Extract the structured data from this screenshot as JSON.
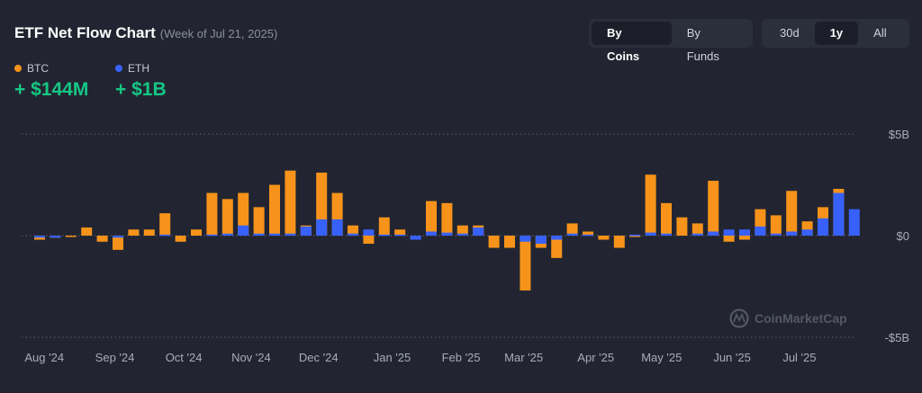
{
  "header": {
    "title": "ETF Net Flow Chart",
    "subtitle": "(Week of Jul 21, 2025)"
  },
  "controls": {
    "view": [
      {
        "label": "By Coins",
        "active": true
      },
      {
        "label": "By Funds",
        "active": false
      }
    ],
    "range": [
      {
        "label": "30d",
        "active": false
      },
      {
        "label": "1y",
        "active": true
      },
      {
        "label": "All",
        "active": false
      }
    ]
  },
  "summary": [
    {
      "label": "BTC",
      "value": "+ $144M",
      "color": "#f7931a"
    },
    {
      "label": "ETH",
      "value": "+ $1B",
      "color": "#3861fb"
    }
  ],
  "watermark": "CoinMarketCap",
  "chart_data": {
    "type": "bar",
    "stacked": true,
    "title": "",
    "xlabel": "",
    "ylabel": "",
    "unit": "billion USD",
    "ylim": [
      -5,
      5
    ],
    "yticks": [
      {
        "value": 5,
        "label": "$5B"
      },
      {
        "value": 0,
        "label": "$0"
      },
      {
        "value": -5,
        "label": "-$5B"
      }
    ],
    "grid": true,
    "x_labels": [
      {
        "label": "Aug '24",
        "index": 0.3
      },
      {
        "label": "Sep '24",
        "index": 4.8
      },
      {
        "label": "Oct '24",
        "index": 9.2
      },
      {
        "label": "Nov '24",
        "index": 13.5
      },
      {
        "label": "Dec '24",
        "index": 17.8
      },
      {
        "label": "Jan '25",
        "index": 22.5
      },
      {
        "label": "Feb '25",
        "index": 26.9
      },
      {
        "label": "Mar '25",
        "index": 30.9
      },
      {
        "label": "Apr '25",
        "index": 35.5
      },
      {
        "label": "May '25",
        "index": 39.7
      },
      {
        "label": "Jun '25",
        "index": 44.2
      },
      {
        "label": "Jul '25",
        "index": 48.5
      }
    ],
    "series": [
      {
        "name": "BTC",
        "color": "#f7931a",
        "values": [
          -0.2,
          -0.1,
          0,
          0.4,
          -0.3,
          -0.7,
          0.3,
          0.3,
          1.1,
          -0.3,
          0.3,
          2.1,
          1.8,
          2.1,
          1.4,
          2.5,
          3.2,
          0.5,
          3.1,
          2.1,
          0.5,
          -0.4,
          0.9,
          0.3,
          -0.1,
          1.7,
          1.6,
          0.5,
          0.5,
          -0.6,
          -0.6,
          -2.7,
          -0.6,
          -1.1,
          0.6,
          0.2,
          -0.2,
          -0.6,
          0,
          3.0,
          1.6,
          0.9,
          0.6,
          2.7,
          -0.3,
          -0.2,
          1.3,
          1.0,
          2.2,
          0.7,
          1.4,
          2.3,
          0.1
        ],
        "marks": [
          -0.2,
          -0.1,
          0,
          0.4,
          -0.3,
          -0.7,
          0.3,
          0.3,
          1.1,
          -0.3,
          0.3,
          2.1,
          1.8,
          2.1,
          1.4,
          2.5,
          3.2,
          0.5,
          3.1,
          2.1,
          0.5,
          -0.4,
          0.9,
          0.3,
          -0.1,
          1.7,
          1.6,
          0.5,
          0.5,
          -0.6,
          -0.6,
          -2.7,
          -0.6,
          -1.1,
          0.6,
          0.2,
          -0.2,
          -0.6,
          0,
          3.0,
          1.6,
          0.9,
          0.6,
          2.7,
          -0.3,
          -0.2,
          1.3,
          1.0,
          2.2,
          0.7,
          1.4,
          2.3,
          0.1
        ]
      },
      {
        "name": "ETH",
        "color": "#3861fb",
        "values": [
          -0.1,
          -0.1,
          0,
          0,
          0,
          -0.1,
          0,
          0,
          0.05,
          0,
          0,
          0.05,
          0.1,
          0.5,
          0.1,
          0.1,
          0.1,
          0.45,
          0.8,
          0.8,
          0.1,
          0.3,
          0.05,
          0.05,
          -0.2,
          0.2,
          0.15,
          0.1,
          0.4,
          0,
          0,
          -0.3,
          -0.4,
          -0.2,
          0.1,
          0.05,
          0,
          0,
          0.05,
          0.15,
          0.1,
          0,
          0.1,
          0.2,
          0.3,
          0.3,
          0.45,
          0.1,
          0.2,
          0.3,
          0.85,
          2.1,
          1.3
        ],
        "marks": [
          -0.1,
          -0.1,
          0,
          0,
          0,
          -0.1,
          0,
          0,
          0.05,
          0,
          0,
          0.05,
          0.1,
          0.5,
          0.1,
          0.1,
          0.1,
          0.45,
          0.8,
          0.8,
          0.1,
          0.3,
          0.05,
          0.05,
          -0.2,
          0.2,
          0.15,
          0.1,
          0.4,
          0,
          0,
          -0.3,
          -0.4,
          -0.2,
          0.1,
          0.05,
          0,
          0,
          0.05,
          0.15,
          0.1,
          0,
          0.1,
          0.2,
          0.3,
          0.3,
          0.45,
          0.1,
          0.2,
          0.3,
          0.85,
          2.1,
          1.3
        ]
      }
    ]
  }
}
